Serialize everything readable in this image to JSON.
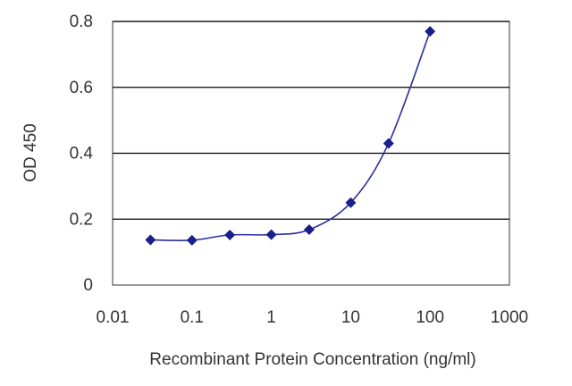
{
  "chart_data": {
    "type": "line",
    "title": "",
    "xlabel": "Recombinant Protein Concentration (ng/ml)",
    "ylabel": "OD 450",
    "x_scale": "log",
    "xlim": [
      0.01,
      1000
    ],
    "ylim": [
      0,
      0.8
    ],
    "x_ticks": [
      "0.01",
      "0.1",
      "1",
      "10",
      "100",
      "1000"
    ],
    "y_ticks": [
      "0",
      "0.2",
      "0.4",
      "0.6",
      "0.8"
    ],
    "grid": "horizontal",
    "series": [
      {
        "x": [
          0.03,
          0.1,
          0.3,
          1,
          3,
          10,
          30,
          100
        ],
        "y": [
          0.137,
          0.136,
          0.152,
          0.153,
          0.168,
          0.25,
          0.43,
          0.77
        ]
      }
    ],
    "colors": {
      "line": "#2b2f9e",
      "marker": "#1a1f8a",
      "grid": "#000000",
      "frame": "#555555"
    }
  }
}
